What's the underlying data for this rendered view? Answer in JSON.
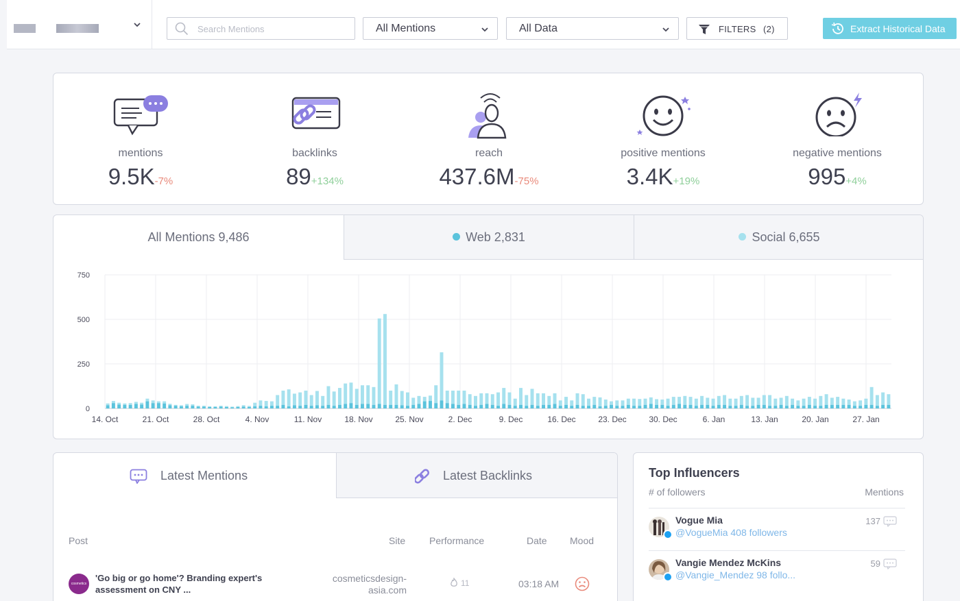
{
  "toolbar": {
    "search_placeholder": "Search Mentions",
    "mentions_filter": "All Mentions",
    "data_filter": "All Data",
    "filters_label": "FILTERS",
    "filters_count": "(2)",
    "extract_label": "Extract Historical Data"
  },
  "stats": [
    {
      "label": "mentions",
      "value": "9.5K",
      "change": "-7%"
    },
    {
      "label": "backlinks",
      "value": "89",
      "change": "+134%"
    },
    {
      "label": "reach",
      "value": "437.6M",
      "change": "-75%"
    },
    {
      "label": "positive mentions",
      "value": "3.4K",
      "change": "+19%"
    },
    {
      "label": "negative mentions",
      "value": "995",
      "change": "+4%"
    }
  ],
  "tabs": [
    {
      "label": "All Mentions 9,486"
    },
    {
      "label": "Web 2,831",
      "color": "#5bc3dc"
    },
    {
      "label": "Social 6,655",
      "color": "#a6e1ee"
    }
  ],
  "chart_data": {
    "type": "bar",
    "x_tick_labels": [
      "14. Oct",
      "21. Oct",
      "28. Oct",
      "4. Nov",
      "11. Nov",
      "18. Nov",
      "25. Nov",
      "2. Dec",
      "9. Dec",
      "16. Dec",
      "23. Dec",
      "30. Dec",
      "6. Jan",
      "13. Jan",
      "20. Jan",
      "27. Jan"
    ],
    "y_ticks": [
      0,
      250,
      500,
      750
    ],
    "ylim": [
      0,
      750
    ],
    "grid": true,
    "stacked": true,
    "series": [
      {
        "name": "Web",
        "color": "#5bc3dc",
        "values": [
          18,
          30,
          22,
          20,
          20,
          25,
          22,
          40,
          30,
          30,
          28,
          18,
          15,
          12,
          15,
          15,
          10,
          10,
          8,
          8,
          10,
          8,
          6,
          8,
          10,
          8,
          12,
          15,
          12,
          15,
          15,
          20,
          12,
          18,
          15,
          20,
          15,
          18,
          15,
          20,
          15,
          20,
          25,
          30,
          20,
          25,
          25,
          20,
          25,
          20,
          20,
          20,
          18,
          15,
          20,
          25,
          40,
          42,
          30,
          45,
          30,
          25,
          20,
          25,
          20,
          15,
          20,
          25,
          20,
          15,
          25,
          20,
          15,
          20,
          15,
          20,
          15,
          20,
          20,
          25,
          15,
          20,
          15,
          20,
          15,
          15,
          20,
          12,
          15,
          20,
          15,
          15,
          20,
          15,
          15,
          20,
          25,
          20,
          20,
          15,
          20,
          25,
          20,
          20,
          15,
          20,
          20,
          15,
          20,
          20,
          15,
          15,
          20,
          15,
          15,
          20,
          20,
          15,
          15,
          20,
          15,
          20,
          15,
          15,
          20,
          15,
          15,
          20,
          20,
          20,
          20,
          20,
          15,
          15,
          20,
          20,
          15,
          20,
          20
        ]
      },
      {
        "name": "Social",
        "color": "#a6e1ee",
        "values": [
          10,
          12,
          10,
          8,
          10,
          12,
          10,
          15,
          15,
          10,
          12,
          8,
          5,
          6,
          10,
          8,
          5,
          5,
          4,
          4,
          5,
          5,
          4,
          5,
          8,
          6,
          20,
          30,
          30,
          25,
          60,
          80,
          95,
          65,
          75,
          80,
          60,
          80,
          55,
          105,
          80,
          95,
          115,
          115,
          90,
          105,
          105,
          100,
          480,
          510,
          80,
          115,
          80,
          75,
          40,
          45,
          25,
          30,
          100,
          270,
          70,
          75,
          80,
          75,
          60,
          55,
          65,
          60,
          60,
          75,
          90,
          70,
          40,
          95,
          60,
          90,
          70,
          65,
          50,
          60,
          30,
          45,
          30,
          65,
          65,
          40,
          45,
          50,
          35,
          20,
          30,
          30,
          35,
          40,
          38,
          35,
          37,
          32,
          30,
          40,
          45,
          40,
          50,
          45,
          40,
          50,
          40,
          40,
          50,
          55,
          40,
          40,
          50,
          60,
          45,
          40,
          55,
          60,
          40,
          40,
          55,
          35,
          30,
          40,
          45,
          40,
          55,
          60,
          40,
          45,
          35,
          30,
          25,
          30,
          35,
          100,
          60,
          70,
          60
        ]
      }
    ]
  },
  "latest": {
    "tab_mentions": "Latest Mentions",
    "tab_backlinks": "Latest Backlinks",
    "columns": {
      "post": "Post",
      "site": "Site",
      "performance": "Performance",
      "date": "Date",
      "mood": "Mood"
    },
    "rows": [
      {
        "avatar_text": "cosmetics design asia",
        "title": "'Go big or go home'? Branding expert's assessment on CNY ...",
        "site": "cosmeticsdesign-asia.com",
        "performance": "11",
        "date": "03:18 AM",
        "mood_icon": "sad-face-icon"
      }
    ]
  },
  "influencers": {
    "title": "Top Influencers",
    "col_followers": "# of followers",
    "col_mentions": "Mentions",
    "items": [
      {
        "name": "Vogue Mia",
        "handle": "@VogueMia 408 followers",
        "mentions": "137"
      },
      {
        "name": "Vangie Mendez McKins",
        "handle": "@Vangie_Mendez 98 follo...",
        "mentions": "59"
      }
    ]
  },
  "colors": {
    "accent": "#6fcfe3",
    "icon_purple": "#8b7fe0",
    "negative": "#e98a7b",
    "positive": "#8fcf9a"
  }
}
